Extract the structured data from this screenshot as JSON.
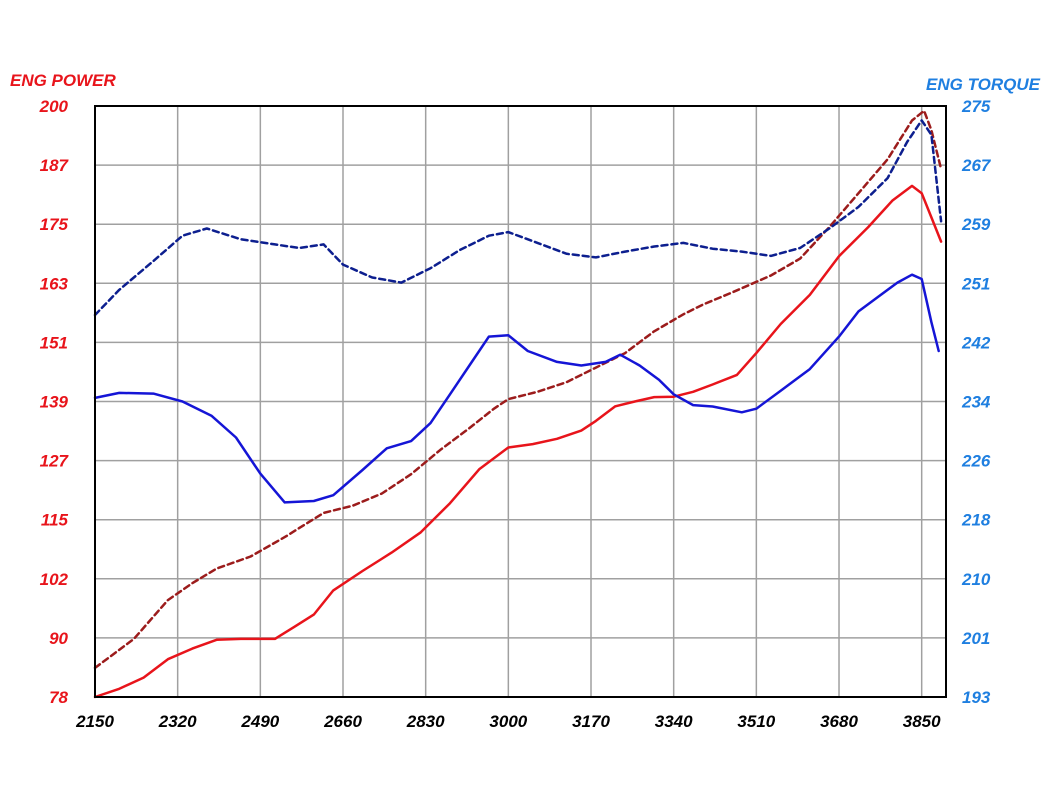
{
  "chart_data": {
    "type": "line",
    "title": "",
    "xlabel": "",
    "left_axis_label": "ENG POWER",
    "right_axis_label": "ENG TORQUE",
    "xlim": [
      2150,
      3900
    ],
    "x_ticks": [
      "2150",
      "2320",
      "2490",
      "2660",
      "2830",
      "3000",
      "3170",
      "3340",
      "3510",
      "3680",
      "3850"
    ],
    "left_ylim": [
      78,
      200
    ],
    "left_ticks": [
      "78",
      "90",
      "102",
      "115",
      "127",
      "139",
      "151",
      "163",
      "175",
      "187",
      "200"
    ],
    "right_ylim": [
      193,
      275
    ],
    "right_ticks": [
      "193",
      "201",
      "210",
      "218",
      "226",
      "234",
      "242",
      "251",
      "259",
      "267",
      "275"
    ],
    "grid": true,
    "colors": {
      "left_axis": "#e8141b",
      "right_axis": "#1f7fe0",
      "power_solid": "#e8141b",
      "power_dashed": "#9c1c1c",
      "torque_solid": "#1515d6",
      "torque_dashed": "#0d1f8f"
    },
    "series": [
      {
        "axis": "left",
        "style": "solid",
        "color_key": "power_solid",
        "points": [
          [
            2150,
            78
          ],
          [
            2200,
            79.7
          ],
          [
            2250,
            82
          ],
          [
            2300,
            85.8
          ],
          [
            2350,
            88
          ],
          [
            2400,
            89.8
          ],
          [
            2450,
            90
          ],
          [
            2520,
            90
          ],
          [
            2560,
            92.5
          ],
          [
            2600,
            95
          ],
          [
            2640,
            100
          ],
          [
            2700,
            104
          ],
          [
            2760,
            107.8
          ],
          [
            2820,
            112
          ],
          [
            2880,
            118
          ],
          [
            2940,
            125
          ],
          [
            3000,
            129.5
          ],
          [
            3050,
            130.2
          ],
          [
            3100,
            131.3
          ],
          [
            3150,
            133
          ],
          [
            3180,
            135
          ],
          [
            3220,
            138
          ],
          [
            3260,
            139
          ],
          [
            3300,
            139.9
          ],
          [
            3340,
            140
          ],
          [
            3380,
            141
          ],
          [
            3420,
            142.5
          ],
          [
            3470,
            144.5
          ],
          [
            3510,
            149
          ],
          [
            3560,
            155
          ],
          [
            3620,
            161
          ],
          [
            3680,
            169
          ],
          [
            3740,
            175
          ],
          [
            3790,
            180.5
          ],
          [
            3830,
            183.5
          ],
          [
            3850,
            182
          ],
          [
            3870,
            177
          ],
          [
            3890,
            172
          ]
        ]
      },
      {
        "axis": "left",
        "style": "dashed",
        "color_key": "power_dashed",
        "points": [
          [
            2150,
            84
          ],
          [
            2230,
            90
          ],
          [
            2300,
            98
          ],
          [
            2350,
            101.5
          ],
          [
            2400,
            104.5
          ],
          [
            2470,
            107
          ],
          [
            2540,
            111
          ],
          [
            2620,
            116
          ],
          [
            2680,
            117.5
          ],
          [
            2740,
            120
          ],
          [
            2800,
            124
          ],
          [
            2860,
            129
          ],
          [
            2920,
            133.5
          ],
          [
            2970,
            137.5
          ],
          [
            3000,
            139.5
          ],
          [
            3060,
            141
          ],
          [
            3120,
            143
          ],
          [
            3180,
            146
          ],
          [
            3240,
            149
          ],
          [
            3300,
            153.5
          ],
          [
            3360,
            157
          ],
          [
            3400,
            159
          ],
          [
            3460,
            161.5
          ],
          [
            3540,
            165
          ],
          [
            3600,
            168.5
          ],
          [
            3660,
            175
          ],
          [
            3720,
            182
          ],
          [
            3780,
            189
          ],
          [
            3830,
            197
          ],
          [
            3855,
            199
          ],
          [
            3870,
            195
          ],
          [
            3890,
            187
          ]
        ]
      },
      {
        "axis": "right",
        "style": "solid",
        "color_key": "torque_solid",
        "points": [
          [
            2150,
            234.5
          ],
          [
            2200,
            235.2
          ],
          [
            2270,
            235.1
          ],
          [
            2330,
            234
          ],
          [
            2390,
            232
          ],
          [
            2440,
            229
          ],
          [
            2490,
            224
          ],
          [
            2540,
            220
          ],
          [
            2600,
            220.2
          ],
          [
            2640,
            221
          ],
          [
            2700,
            224.5
          ],
          [
            2750,
            227.5
          ],
          [
            2800,
            228.5
          ],
          [
            2840,
            231
          ],
          [
            2880,
            235
          ],
          [
            2920,
            239
          ],
          [
            2960,
            243
          ],
          [
            3000,
            243.2
          ],
          [
            3040,
            241
          ],
          [
            3100,
            239.5
          ],
          [
            3150,
            239
          ],
          [
            3200,
            239.5
          ],
          [
            3230,
            240.5
          ],
          [
            3270,
            239
          ],
          [
            3310,
            237
          ],
          [
            3340,
            235
          ],
          [
            3380,
            233.5
          ],
          [
            3420,
            233.3
          ],
          [
            3480,
            232.5
          ],
          [
            3510,
            233
          ],
          [
            3560,
            235.5
          ],
          [
            3620,
            238.5
          ],
          [
            3680,
            243
          ],
          [
            3720,
            246.5
          ],
          [
            3760,
            248.5
          ],
          [
            3800,
            250.5
          ],
          [
            3830,
            251.6
          ],
          [
            3850,
            251
          ],
          [
            3870,
            245
          ],
          [
            3885,
            241
          ]
        ]
      },
      {
        "axis": "right",
        "style": "dashed",
        "color_key": "torque_dashed",
        "points": [
          [
            2150,
            246
          ],
          [
            2200,
            249.5
          ],
          [
            2270,
            253.5
          ],
          [
            2330,
            257
          ],
          [
            2380,
            258
          ],
          [
            2450,
            256.5
          ],
          [
            2520,
            255.8
          ],
          [
            2570,
            255.3
          ],
          [
            2620,
            255.8
          ],
          [
            2660,
            253
          ],
          [
            2720,
            251.2
          ],
          [
            2780,
            250.5
          ],
          [
            2840,
            252.5
          ],
          [
            2900,
            255
          ],
          [
            2960,
            257
          ],
          [
            3000,
            257.5
          ],
          [
            3060,
            256
          ],
          [
            3120,
            254.5
          ],
          [
            3180,
            254
          ],
          [
            3240,
            254.8
          ],
          [
            3300,
            255.5
          ],
          [
            3360,
            256
          ],
          [
            3420,
            255.2
          ],
          [
            3480,
            254.8
          ],
          [
            3540,
            254.2
          ],
          [
            3600,
            255.3
          ],
          [
            3660,
            258
          ],
          [
            3720,
            261
          ],
          [
            3780,
            265
          ],
          [
            3820,
            270
          ],
          [
            3850,
            273
          ],
          [
            3870,
            271
          ],
          [
            3890,
            259
          ]
        ]
      }
    ]
  }
}
